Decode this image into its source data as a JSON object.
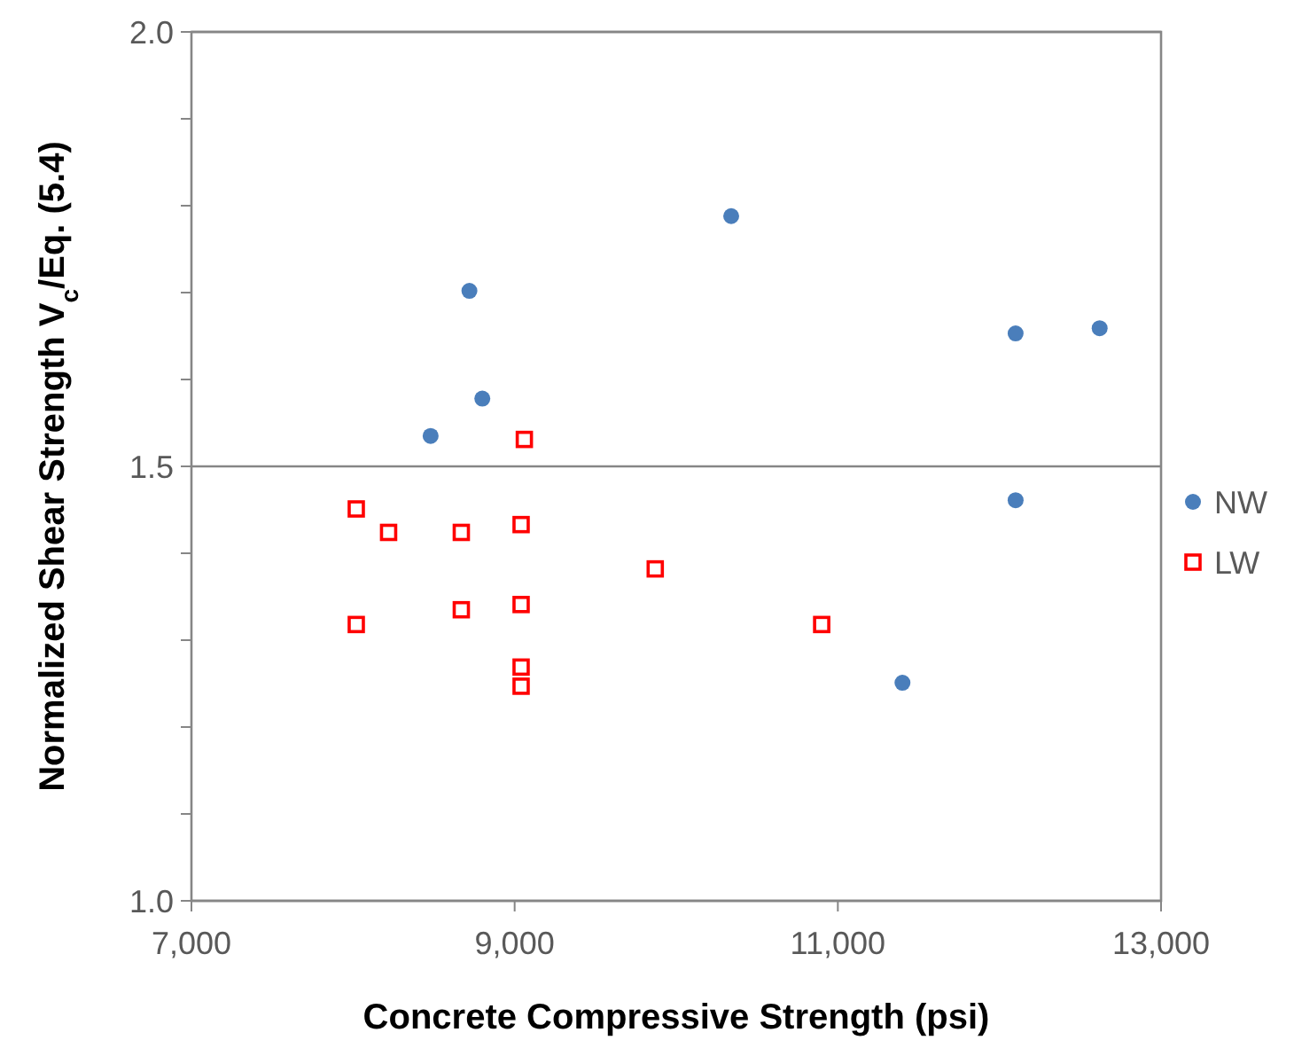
{
  "chart_data": {
    "type": "scatter",
    "xlabel": "Concrete Compressive Strength (psi)",
    "ylabel": "Normalized Shear Strength V$_{c}$/Eq. (5.4)",
    "xlim": [
      7000,
      13000
    ],
    "xticks": [
      {
        "value": 7000,
        "label": "7,000"
      },
      {
        "value": 9000,
        "label": "9,000"
      },
      {
        "value": 11000,
        "label": "11,000"
      },
      {
        "value": 13000,
        "label": "13,000"
      }
    ],
    "ylim": [
      1.0,
      2.0
    ],
    "yticks": [
      {
        "value": 1.0,
        "label": "1.0"
      },
      {
        "value": 1.1,
        "label": null
      },
      {
        "value": 1.2,
        "label": null
      },
      {
        "value": 1.3,
        "label": null
      },
      {
        "value": 1.4,
        "label": null
      },
      {
        "value": 1.5,
        "label": "1.5"
      },
      {
        "value": 1.6,
        "label": null
      },
      {
        "value": 1.7,
        "label": null
      },
      {
        "value": 1.8,
        "label": null
      },
      {
        "value": 1.9,
        "label": null
      },
      {
        "value": 2.0,
        "label": "2.0"
      }
    ],
    "grid": "y",
    "legend": "right",
    "series": [
      {
        "name": "NW",
        "color": "#4a7ebb",
        "marker": "circle",
        "x": [
          8480,
          8720,
          8800,
          10340,
          12100,
          12620,
          12100,
          11400
        ],
        "values": [
          1.535,
          1.702,
          1.578,
          1.788,
          1.653,
          1.659,
          1.461,
          1.251
        ]
      },
      {
        "name": "LW",
        "color": "#ff0000",
        "marker": "square",
        "x": [
          8020,
          8220,
          8020,
          8670,
          8670,
          9060,
          9040,
          9040,
          9040,
          9040,
          9870,
          10900
        ],
        "values": [
          1.451,
          1.424,
          1.318,
          1.424,
          1.335,
          1.531,
          1.433,
          1.341,
          1.269,
          1.247,
          1.382,
          1.318
        ]
      }
    ]
  }
}
